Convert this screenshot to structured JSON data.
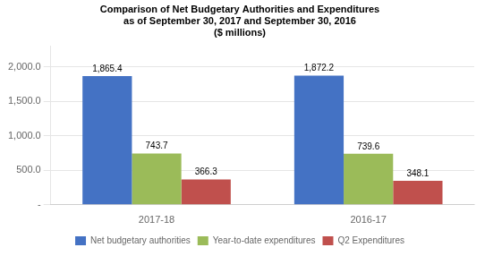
{
  "chart_data": {
    "type": "bar",
    "title": "Comparison of Net Budgetary Authorities and Expenditures\nas of September 30, 2017 and September 30, 2016\n($ millions)",
    "categories": [
      "2017-18",
      "2016-17"
    ],
    "series": [
      {
        "name": "Net budgetary authorities",
        "color": "#4472C4",
        "values": [
          1865.4,
          1872.2
        ],
        "value_labels": [
          "1,865.4",
          "1,872.2"
        ]
      },
      {
        "name": "Year-to-date expenditures",
        "color": "#9BBB59",
        "values": [
          743.7,
          739.6
        ],
        "value_labels": [
          "743.7",
          "739.6"
        ]
      },
      {
        "name": "Q2 Expenditures",
        "color": "#C0504D",
        "values": [
          366.3,
          348.1
        ],
        "value_labels": [
          "366.3",
          "348.1"
        ]
      }
    ],
    "ylim": [
      0,
      2300
    ],
    "yticks": [
      {
        "value": 0,
        "label": "-"
      },
      {
        "value": 500,
        "label": "500.0"
      },
      {
        "value": 1000,
        "label": "1,000.0"
      },
      {
        "value": 1500,
        "label": "1,500.0"
      },
      {
        "value": 2000,
        "label": "2,000.0"
      }
    ],
    "grid": true,
    "legend": "bottom",
    "data_labels": true
  }
}
